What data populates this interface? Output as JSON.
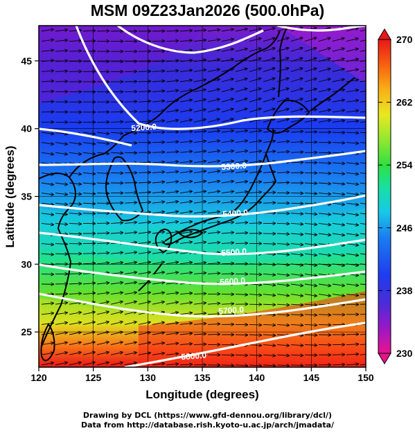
{
  "map": {
    "title": "MSM 09Z23Jan2026 (500.0hPa)",
    "xlabel": "Longitude (degrees)",
    "ylabel": "Latitude  (degrees)",
    "x_ticks": [
      "120",
      "125",
      "130",
      "135",
      "140",
      "145",
      "150"
    ],
    "y_ticks": [
      "25",
      "30",
      "35",
      "40",
      "45"
    ],
    "x_range": [
      120,
      150
    ],
    "y_range": [
      22.4,
      47.6
    ],
    "contour_labels": [
      "5200.0",
      "5300.0",
      "5400.0",
      "5500.0",
      "5600.0",
      "5700.0",
      "5800.0"
    ],
    "colorbar": {
      "ticks": [
        "270",
        "262",
        "254",
        "246",
        "238",
        "230"
      ],
      "range": [
        230,
        270
      ],
      "colors": [
        "#e8148c",
        "#9b18c8",
        "#4a2cd8",
        "#1f3cf0",
        "#1a7ef0",
        "#18c8e8",
        "#18e0a0",
        "#30e040",
        "#90e830",
        "#e8e820",
        "#f8b018",
        "#f86010",
        "#e81818"
      ]
    }
  },
  "footer": {
    "line1": "Drawing by DCL (https://www.gfd-dennou.org/library/dcl/)",
    "line2": "Data from http://database.rish.kyoto-u.ac.jp/arch/jmadata/"
  }
}
